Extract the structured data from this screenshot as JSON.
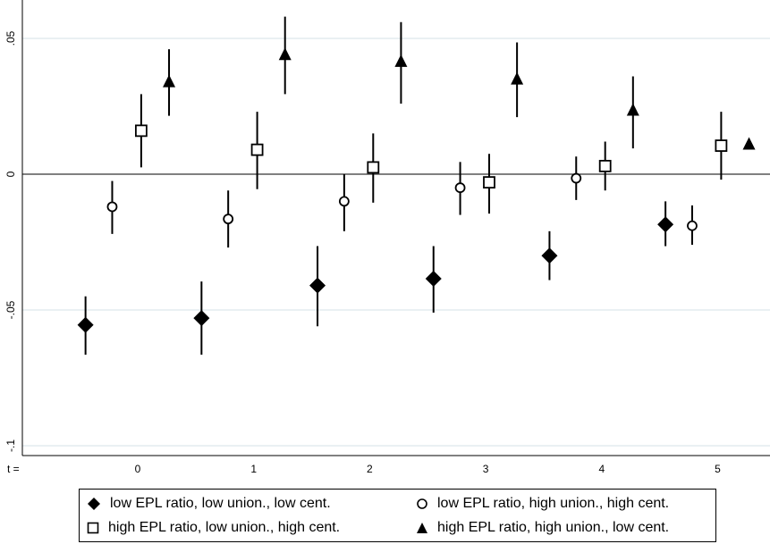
{
  "chart_data": {
    "type": "scatter",
    "title": "",
    "xlabel": "",
    "ylabel": "",
    "x_axis_prefix": "t =",
    "x_ticks": [
      "0",
      "1",
      "2",
      "3",
      "4",
      "5"
    ],
    "y_ticks": [
      {
        "value": 0.05,
        "label": ".05"
      },
      {
        "value": 0,
        "label": "0"
      },
      {
        "value": -0.05,
        "label": "-.05"
      },
      {
        "value": -0.1,
        "label": "-.1"
      }
    ],
    "ylim": [
      -0.105,
      0.062
    ],
    "xlim": [
      -1.0,
      5.55
    ],
    "grid": "horizontal",
    "reference_line": 0,
    "legend_position": "bottom",
    "series": [
      {
        "name": "low EPL ratio, low union., low cent.",
        "marker": "diamond-filled",
        "offset": -0.45,
        "points": [
          {
            "t": 0,
            "y": -0.0555,
            "lo": -0.0665,
            "hi": -0.045
          },
          {
            "t": 1,
            "y": -0.053,
            "lo": -0.0665,
            "hi": -0.0395
          },
          {
            "t": 2,
            "y": -0.041,
            "lo": -0.056,
            "hi": -0.0265
          },
          {
            "t": 3,
            "y": -0.0385,
            "lo": -0.051,
            "hi": -0.0265
          },
          {
            "t": 4,
            "y": -0.03,
            "lo": -0.039,
            "hi": -0.021
          },
          {
            "t": 5,
            "y": -0.0185,
            "lo": -0.0265,
            "hi": -0.01
          }
        ]
      },
      {
        "name": "low EPL ratio, high union., high cent.",
        "marker": "circle-hollow",
        "offset": -0.22,
        "points": [
          {
            "t": 0,
            "y": -0.012,
            "lo": -0.022,
            "hi": -0.0025
          },
          {
            "t": 1,
            "y": -0.0165,
            "lo": -0.027,
            "hi": -0.006
          },
          {
            "t": 2,
            "y": -0.01,
            "lo": -0.021,
            "hi": 0.0
          },
          {
            "t": 3,
            "y": -0.005,
            "lo": -0.015,
            "hi": 0.0045
          },
          {
            "t": 4,
            "y": -0.0015,
            "lo": -0.0095,
            "hi": 0.0065
          },
          {
            "t": 5,
            "y": -0.019,
            "lo": -0.026,
            "hi": -0.0115
          }
        ]
      },
      {
        "name": "high EPL ratio, low union., high cent.",
        "marker": "square-hollow",
        "offset": 0.03,
        "points": [
          {
            "t": 0,
            "y": 0.016,
            "lo": 0.0025,
            "hi": 0.0295
          },
          {
            "t": 1,
            "y": 0.009,
            "lo": -0.0055,
            "hi": 0.023
          },
          {
            "t": 2,
            "y": 0.0025,
            "lo": -0.0105,
            "hi": 0.015
          },
          {
            "t": 3,
            "y": -0.003,
            "lo": -0.0145,
            "hi": 0.0075
          },
          {
            "t": 4,
            "y": 0.003,
            "lo": -0.006,
            "hi": 0.012
          },
          {
            "t": 5,
            "y": 0.0105,
            "lo": -0.002,
            "hi": 0.023
          }
        ]
      },
      {
        "name": "high EPL ratio, high union., low cent.",
        "marker": "triangle-filled",
        "offset": 0.27,
        "points": [
          {
            "t": 0,
            "y": 0.034,
            "lo": 0.0215,
            "hi": 0.046
          },
          {
            "t": 1,
            "y": 0.044,
            "lo": 0.0295,
            "hi": 0.058
          },
          {
            "t": 2,
            "y": 0.0415,
            "lo": 0.026,
            "hi": 0.056
          },
          {
            "t": 3,
            "y": 0.035,
            "lo": 0.021,
            "hi": 0.0485
          },
          {
            "t": 4,
            "y": 0.0235,
            "lo": 0.0095,
            "hi": 0.036
          },
          {
            "t": 5,
            "y": 0.011,
            "lo": 0.011,
            "hi": 0.011
          }
        ]
      }
    ]
  },
  "legend": {
    "items": [
      {
        "label": "low EPL ratio, low union., low cent.",
        "marker": "diamond-filled"
      },
      {
        "label": "low EPL ratio, high union., high cent.",
        "marker": "circle-hollow"
      },
      {
        "label": "high EPL ratio, low union., high cent.",
        "marker": "square-hollow"
      },
      {
        "label": "high EPL ratio, high union., low cent.",
        "marker": "triangle-filled"
      }
    ]
  },
  "colors": {
    "marker": "#000000",
    "grid": "#e3ecef",
    "axis": "#000000",
    "background": "#ffffff"
  }
}
